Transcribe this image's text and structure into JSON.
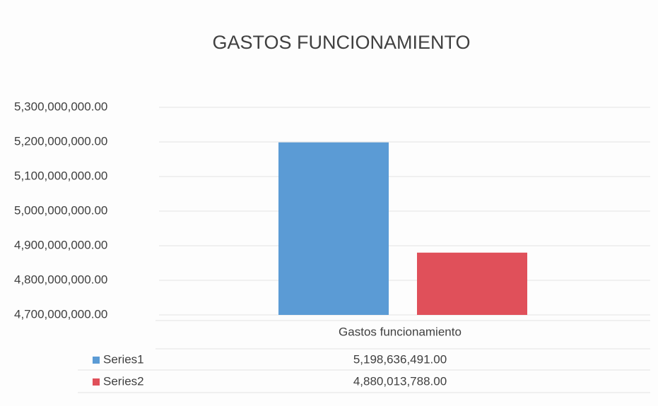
{
  "chart_data": {
    "type": "bar",
    "title": "GASTOS FUNCIONAMIENTO",
    "categories": [
      "Gastos funcionamiento"
    ],
    "series": [
      {
        "name": "Series1",
        "color": "#5b9bd5",
        "values": [
          5198636491
        ],
        "value_labels": [
          "5,198,636,491.00"
        ]
      },
      {
        "name": "Series2",
        "color": "#e0505a",
        "values": [
          4880013788
        ],
        "value_labels": [
          "4,880,013,788.00"
        ]
      }
    ],
    "ylim": [
      4700000000,
      5300000000
    ],
    "yticks": [
      {
        "value": 4700000000,
        "label": "4,700,000,000.00"
      },
      {
        "value": 4800000000,
        "label": "4,800,000,000.00"
      },
      {
        "value": 4900000000,
        "label": "4,900,000,000.00"
      },
      {
        "value": 5000000000,
        "label": "5,000,000,000.00"
      },
      {
        "value": 5100000000,
        "label": "5,100,000,000.00"
      },
      {
        "value": 5200000000,
        "label": "5,200,000,000.00"
      },
      {
        "value": 5300000000,
        "label": "5,300,000,000.00"
      }
    ],
    "grid": true
  }
}
